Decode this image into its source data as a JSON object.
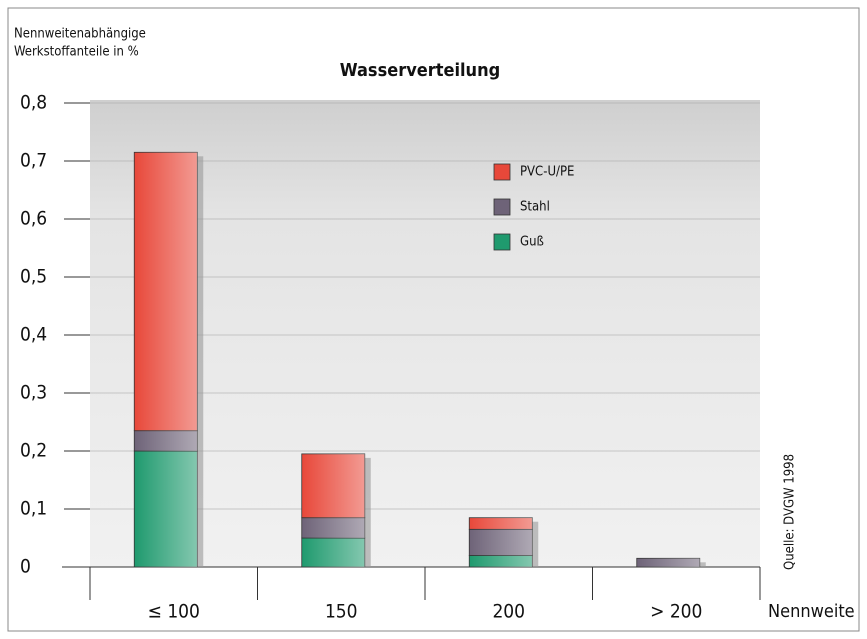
{
  "chart_data": {
    "type": "stacked_bar",
    "title": "Wasserverteilung",
    "y_label": [
      "Nennweitenabhängige",
      "Werkstoffanteile in %"
    ],
    "x_label": "Nennweite",
    "source": "Quelle: DVGW 1998",
    "categories": [
      "≤ 100",
      "150",
      "200",
      "> 200"
    ],
    "series": [
      {
        "name": "Guß",
        "color": "#1f9a6e",
        "values": [
          0.2,
          0.05,
          0.02,
          0
        ]
      },
      {
        "name": "Stahl",
        "color": "#6e6378",
        "values": [
          0.035,
          0.035,
          0.045,
          0.015
        ]
      },
      {
        "name": "PVC-U/PE",
        "color": "#e8483a",
        "values": [
          0.48,
          0.11,
          0.02,
          0
        ]
      }
    ],
    "ylim": [
      0,
      0.8
    ],
    "yticks": [
      0,
      {
        "value": 0.1,
        "label": "0,1"
      },
      {
        "value": 0.2,
        "label": "0,2"
      },
      {
        "value": 0.3,
        "label": "0,3"
      },
      {
        "value": 0.4,
        "label": "0,4"
      },
      {
        "value": 0.5,
        "label": "0,5"
      },
      {
        "value": 0.6,
        "label": "0,6"
      },
      {
        "value": 0.7,
        "label": "0,7"
      },
      {
        "value": 0.8,
        "label": "0,8"
      }
    ],
    "grid": true
  }
}
